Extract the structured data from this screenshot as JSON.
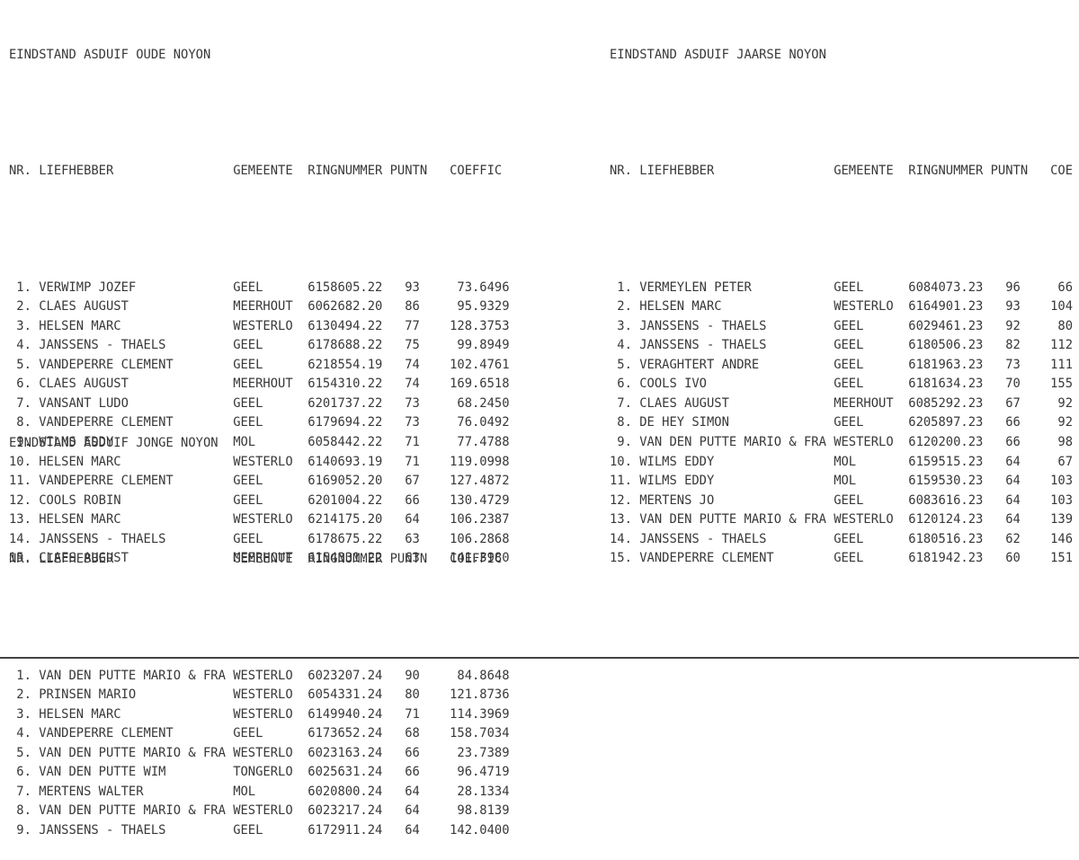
{
  "page": {
    "background": "#ffffff",
    "text_color": "#383838",
    "bottom_edge_color": "#444444"
  },
  "tables": [
    {
      "id": "oude",
      "title": "EINDSTAND ASDUIF OUDE NOYON",
      "clipped": false,
      "columns": [
        "NR.",
        "LIEFHEBBER",
        "GEMEENTE",
        "RINGNUMMER",
        "PUNTN",
        "COEFFIC"
      ],
      "rows": [
        {
          "nr": 1,
          "name": "VERWIMP JOZEF",
          "gemeente": "GEEL",
          "ring": "6158605.22",
          "puntn": 93,
          "coeffic": "73.6496"
        },
        {
          "nr": 2,
          "name": "CLAES AUGUST",
          "gemeente": "MEERHOUT",
          "ring": "6062682.20",
          "puntn": 86,
          "coeffic": "95.9329"
        },
        {
          "nr": 3,
          "name": "HELSEN MARC",
          "gemeente": "WESTERLO",
          "ring": "6130494.22",
          "puntn": 77,
          "coeffic": "128.3753"
        },
        {
          "nr": 4,
          "name": "JANSSENS - THAELS",
          "gemeente": "GEEL",
          "ring": "6178688.22",
          "puntn": 75,
          "coeffic": "99.8949"
        },
        {
          "nr": 5,
          "name": "VANDEPERRE CLEMENT",
          "gemeente": "GEEL",
          "ring": "6218554.19",
          "puntn": 74,
          "coeffic": "102.4761"
        },
        {
          "nr": 6,
          "name": "CLAES AUGUST",
          "gemeente": "MEERHOUT",
          "ring": "6154310.22",
          "puntn": 74,
          "coeffic": "169.6518"
        },
        {
          "nr": 7,
          "name": "VANSANT LUDO",
          "gemeente": "GEEL",
          "ring": "6201737.22",
          "puntn": 73,
          "coeffic": "68.2450"
        },
        {
          "nr": 8,
          "name": "VANDEPERRE CLEMENT",
          "gemeente": "GEEL",
          "ring": "6179694.22",
          "puntn": 73,
          "coeffic": "76.0492"
        },
        {
          "nr": 9,
          "name": "WILMS EDDY",
          "gemeente": "MOL",
          "ring": "6058442.22",
          "puntn": 71,
          "coeffic": "77.4788"
        },
        {
          "nr": 10,
          "name": "HELSEN MARC",
          "gemeente": "WESTERLO",
          "ring": "6140693.19",
          "puntn": 71,
          "coeffic": "119.0998"
        },
        {
          "nr": 11,
          "name": "VANDEPERRE CLEMENT",
          "gemeente": "GEEL",
          "ring": "6169052.20",
          "puntn": 67,
          "coeffic": "127.4872"
        },
        {
          "nr": 12,
          "name": "COOLS ROBIN",
          "gemeente": "GEEL",
          "ring": "6201004.22",
          "puntn": 66,
          "coeffic": "130.4729"
        },
        {
          "nr": 13,
          "name": "HELSEN MARC",
          "gemeente": "WESTERLO",
          "ring": "6214175.20",
          "puntn": 64,
          "coeffic": "106.2387"
        },
        {
          "nr": 14,
          "name": "JANSSENS - THAELS",
          "gemeente": "GEEL",
          "ring": "6178675.22",
          "puntn": 63,
          "coeffic": "106.2868"
        },
        {
          "nr": 15,
          "name": "CLAES AUGUST",
          "gemeente": "MEERHOUT",
          "ring": "6154331.22",
          "puntn": 63,
          "coeffic": "141.3980"
        }
      ]
    },
    {
      "id": "jaarse",
      "title": "EINDSTAND ASDUIF JAARSE NOYON",
      "clipped": true,
      "columns": [
        "NR.",
        "LIEFHEBBER",
        "GEMEENTE",
        "RINGNUMMER",
        "PUNTN",
        "COE"
      ],
      "rows": [
        {
          "nr": 1,
          "name": "VERMEYLEN PETER",
          "gemeente": "GEEL",
          "ring": "6084073.23",
          "puntn": 96,
          "coeffic": "66"
        },
        {
          "nr": 2,
          "name": "HELSEN MARC",
          "gemeente": "WESTERLO",
          "ring": "6164901.23",
          "puntn": 93,
          "coeffic": "104"
        },
        {
          "nr": 3,
          "name": "JANSSENS - THAELS",
          "gemeente": "GEEL",
          "ring": "6029461.23",
          "puntn": 92,
          "coeffic": "80"
        },
        {
          "nr": 4,
          "name": "JANSSENS - THAELS",
          "gemeente": "GEEL",
          "ring": "6180506.23",
          "puntn": 82,
          "coeffic": "112"
        },
        {
          "nr": 5,
          "name": "VERAGHTERT ANDRE",
          "gemeente": "GEEL",
          "ring": "6181963.23",
          "puntn": 73,
          "coeffic": "111"
        },
        {
          "nr": 6,
          "name": "COOLS IVO",
          "gemeente": "GEEL",
          "ring": "6181634.23",
          "puntn": 70,
          "coeffic": "155"
        },
        {
          "nr": 7,
          "name": "CLAES AUGUST",
          "gemeente": "MEERHOUT",
          "ring": "6085292.23",
          "puntn": 67,
          "coeffic": "92"
        },
        {
          "nr": 8,
          "name": "DE HEY SIMON",
          "gemeente": "GEEL",
          "ring": "6205897.23",
          "puntn": 66,
          "coeffic": "92"
        },
        {
          "nr": 9,
          "name": "VAN DEN PUTTE MARIO & FRA",
          "gemeente": "WESTERLO",
          "ring": "6120200.23",
          "puntn": 66,
          "coeffic": "98"
        },
        {
          "nr": 10,
          "name": "WILMS EDDY",
          "gemeente": "MOL",
          "ring": "6159515.23",
          "puntn": 64,
          "coeffic": "67"
        },
        {
          "nr": 11,
          "name": "WILMS EDDY",
          "gemeente": "MOL",
          "ring": "6159530.23",
          "puntn": 64,
          "coeffic": "103"
        },
        {
          "nr": 12,
          "name": "MERTENS JO",
          "gemeente": "GEEL",
          "ring": "6083616.23",
          "puntn": 64,
          "coeffic": "103"
        },
        {
          "nr": 13,
          "name": "VAN DEN PUTTE MARIO & FRA",
          "gemeente": "WESTERLO",
          "ring": "6120124.23",
          "puntn": 64,
          "coeffic": "139"
        },
        {
          "nr": 14,
          "name": "JANSSENS - THAELS",
          "gemeente": "GEEL",
          "ring": "6180516.23",
          "puntn": 62,
          "coeffic": "146"
        },
        {
          "nr": 15,
          "name": "VANDEPERRE CLEMENT",
          "gemeente": "GEEL",
          "ring": "6181942.23",
          "puntn": 60,
          "coeffic": "151"
        }
      ]
    },
    {
      "id": "jonge",
      "title": "EINDSTAND ASDUIF JONGE NOYON",
      "clipped": false,
      "columns": [
        "NR.",
        "LIEFHEBBER",
        "GEMEENTE",
        "RINGNUMMER",
        "PUNTN",
        "COEFFIC"
      ],
      "rows": [
        {
          "nr": 1,
          "name": "VAN DEN PUTTE MARIO & FRA",
          "gemeente": "WESTERLO",
          "ring": "6023207.24",
          "puntn": 90,
          "coeffic": "84.8648"
        },
        {
          "nr": 2,
          "name": "PRINSEN MARIO",
          "gemeente": "WESTERLO",
          "ring": "6054331.24",
          "puntn": 80,
          "coeffic": "121.8736"
        },
        {
          "nr": 3,
          "name": "HELSEN MARC",
          "gemeente": "WESTERLO",
          "ring": "6149940.24",
          "puntn": 71,
          "coeffic": "114.3969"
        },
        {
          "nr": 4,
          "name": "VANDEPERRE CLEMENT",
          "gemeente": "GEEL",
          "ring": "6173652.24",
          "puntn": 68,
          "coeffic": "158.7034"
        },
        {
          "nr": 5,
          "name": "VAN DEN PUTTE MARIO & FRA",
          "gemeente": "WESTERLO",
          "ring": "6023163.24",
          "puntn": 66,
          "coeffic": "23.7389"
        },
        {
          "nr": 6,
          "name": "VAN DEN PUTTE WIM",
          "gemeente": "TONGERLO",
          "ring": "6025631.24",
          "puntn": 66,
          "coeffic": "96.4719"
        },
        {
          "nr": 7,
          "name": "MERTENS WALTER",
          "gemeente": "MOL",
          "ring": "6020800.24",
          "puntn": 64,
          "coeffic": "28.1334"
        },
        {
          "nr": 8,
          "name": "VAN DEN PUTTE MARIO & FRA",
          "gemeente": "WESTERLO",
          "ring": "6023217.24",
          "puntn": 64,
          "coeffic": "98.8139"
        },
        {
          "nr": 9,
          "name": "JANSSENS - THAELS",
          "gemeente": "GEEL",
          "ring": "6172911.24",
          "puntn": 64,
          "coeffic": "142.0400"
        }
      ]
    }
  ]
}
